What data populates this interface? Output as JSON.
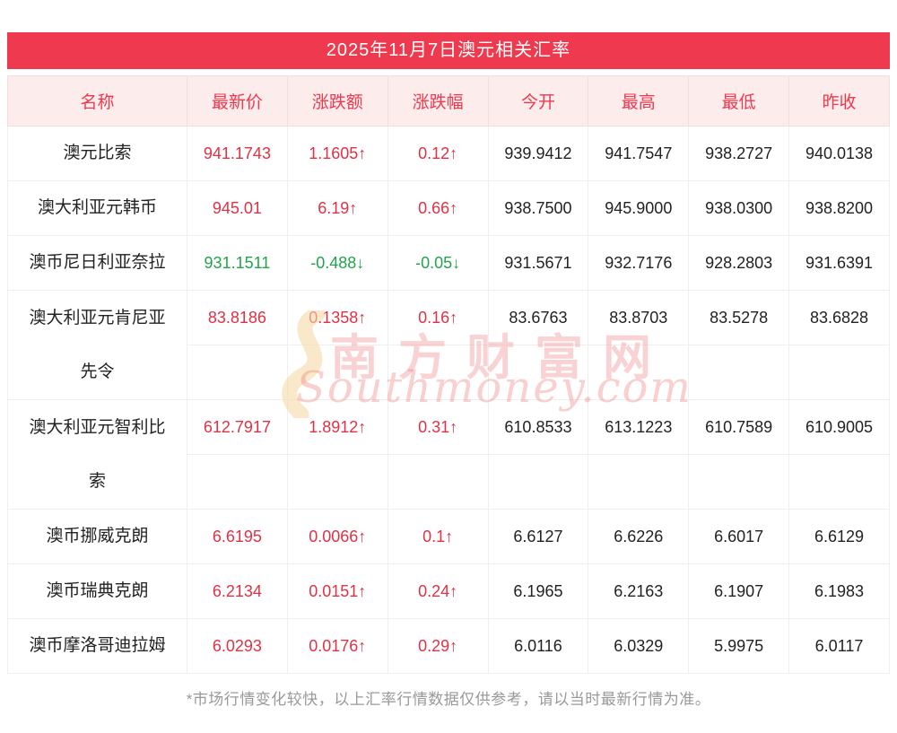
{
  "title": "2025年11月7日澳元相关汇率",
  "columns": [
    "名称",
    "最新价",
    "涨跌额",
    "涨跌幅",
    "今开",
    "最高",
    "最低",
    "昨收"
  ],
  "rows": [
    {
      "name": "澳元比索",
      "name2": "",
      "dir": "up",
      "latest": "941.1743",
      "change": "1.1605↑",
      "pct": "0.12↑",
      "open": "939.9412",
      "high": "941.7547",
      "low": "938.2727",
      "prev": "940.0138"
    },
    {
      "name": "澳大利亚元韩币",
      "name2": "",
      "dir": "up",
      "latest": "945.01",
      "change": "6.19↑",
      "pct": "0.66↑",
      "open": "938.7500",
      "high": "945.9000",
      "low": "938.0300",
      "prev": "938.8200"
    },
    {
      "name": "澳币尼日利亚奈拉",
      "name2": "",
      "dir": "down",
      "latest": "931.1511",
      "change": "-0.488↓",
      "pct": "-0.05↓",
      "open": "931.5671",
      "high": "932.7176",
      "low": "928.2803",
      "prev": "931.6391"
    },
    {
      "name": "澳大利亚元肯尼亚",
      "name2": "先令",
      "dir": "up",
      "latest": "83.8186",
      "change": "0.1358↑",
      "pct": "0.16↑",
      "open": "83.6763",
      "high": "83.8703",
      "low": "83.5278",
      "prev": "83.6828"
    },
    {
      "name": "澳大利亚元智利比",
      "name2": "索",
      "dir": "up",
      "latest": "612.7917",
      "change": "1.8912↑",
      "pct": "0.31↑",
      "open": "610.8533",
      "high": "613.1223",
      "low": "610.7589",
      "prev": "610.9005"
    },
    {
      "name": "澳币挪威克朗",
      "name2": "",
      "dir": "up",
      "latest": "6.6195",
      "change": "0.0066↑",
      "pct": "0.1↑",
      "open": "6.6127",
      "high": "6.6226",
      "low": "6.6017",
      "prev": "6.6129"
    },
    {
      "name": "澳币瑞典克朗",
      "name2": "",
      "dir": "up",
      "latest": "6.2134",
      "change": "0.0151↑",
      "pct": "0.24↑",
      "open": "6.1965",
      "high": "6.2163",
      "low": "6.1907",
      "prev": "6.1983"
    },
    {
      "name": "澳币摩洛哥迪拉姆",
      "name2": "",
      "dir": "up",
      "latest": "6.0293",
      "change": "0.0176↑",
      "pct": "0.29↑",
      "open": "6.0116",
      "high": "6.0329",
      "low": "5.9975",
      "prev": "6.0117"
    }
  ],
  "footer": "*市场行情变化较快，以上汇率行情数据仅供参考，请以当时最新行情为准。",
  "watermark": {
    "cn": "南方财富网",
    "en": "Southmoney.com"
  },
  "colors": {
    "accent": "#ee394e",
    "header_bg": "#fdecec",
    "up": "#e23144",
    "down": "#21a44b",
    "border": "#efefef",
    "text": "#222222",
    "muted": "#999999"
  }
}
